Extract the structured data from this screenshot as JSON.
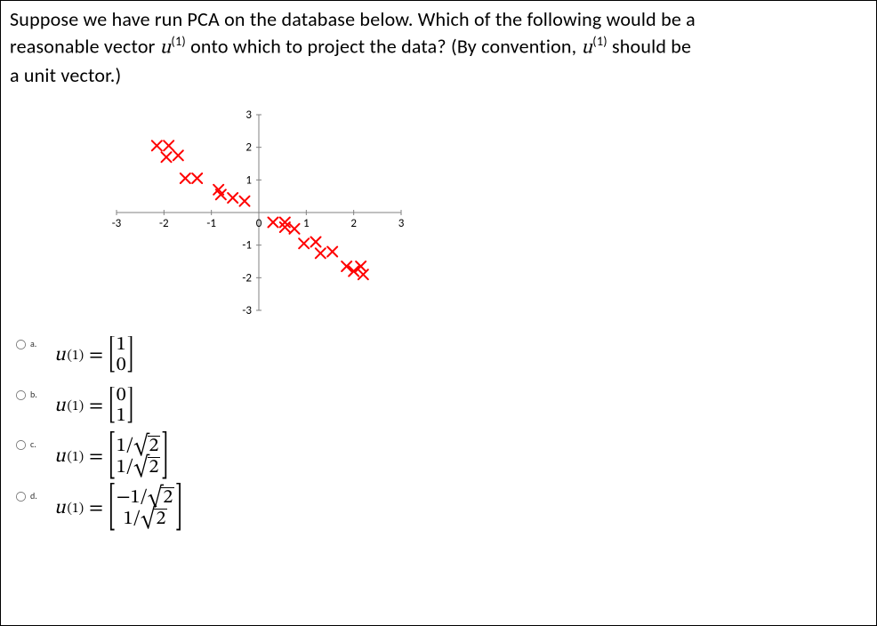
{
  "question": {
    "line1_prefix": "Suppose we have run PCA on the database below. Which of the following would be a",
    "line2_prefix": "reasonable vector ",
    "u_sym": "u",
    "sup1": "(1)",
    "line2_mid": " onto which to project the data? (By convention, ",
    "line2_end": " should be",
    "line3": "a unit vector.)"
  },
  "chart": {
    "type": "scatter",
    "xlim": [
      -3,
      3
    ],
    "ylim": [
      -3,
      3
    ],
    "xticks": [
      -3,
      -2,
      -1,
      0,
      1,
      2,
      3
    ],
    "yticks": [
      -3,
      -2,
      -1,
      1,
      2,
      3
    ],
    "tick_fontsize": 13,
    "tick_color": "#000000",
    "axis_color": "#808080",
    "tick_mark_color": "#808080",
    "background_color": "#ffffff",
    "marker": "x",
    "marker_color": "#ff0000",
    "marker_size": 11,
    "marker_stroke": 2,
    "points": [
      [
        -2.15,
        2.05
      ],
      [
        -1.9,
        2.05
      ],
      [
        -1.95,
        1.7
      ],
      [
        -1.7,
        1.75
      ],
      [
        -1.55,
        1.05
      ],
      [
        -1.3,
        1.05
      ],
      [
        -0.85,
        0.7
      ],
      [
        -0.8,
        0.55
      ],
      [
        -0.55,
        0.45
      ],
      [
        -0.3,
        0.35
      ],
      [
        0.3,
        -0.3
      ],
      [
        0.55,
        -0.3
      ],
      [
        0.55,
        -0.45
      ],
      [
        0.75,
        -0.5
      ],
      [
        0.95,
        -0.95
      ],
      [
        1.2,
        -0.9
      ],
      [
        1.3,
        -1.25
      ],
      [
        1.55,
        -1.2
      ],
      [
        1.85,
        -1.65
      ],
      [
        2.0,
        -1.8
      ],
      [
        2.15,
        -1.65
      ],
      [
        2.2,
        -1.9
      ]
    ]
  },
  "answers": {
    "lhs_sym": "u",
    "lhs_sup": "(1)",
    "eq": "=",
    "options": [
      {
        "key": "a",
        "label": "a.",
        "rows": [
          "1",
          "0"
        ],
        "size": "small"
      },
      {
        "key": "b",
        "label": "b.",
        "rows": [
          "0",
          "1"
        ],
        "size": "small"
      },
      {
        "key": "c",
        "label": "c.",
        "rows": [
          "1/√2",
          "1/√2"
        ],
        "size": "big"
      },
      {
        "key": "d",
        "label": "d.",
        "rows": [
          "−1/√2",
          "1/√2"
        ],
        "size": "big"
      }
    ]
  },
  "colors": {
    "text": "#000000",
    "border": "#000000",
    "bg": "#ffffff"
  }
}
